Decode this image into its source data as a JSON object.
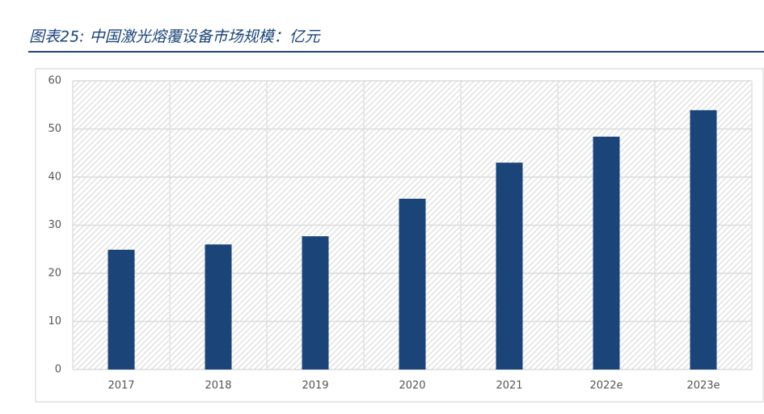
{
  "chart_data": {
    "type": "bar",
    "title": "图表25: 中国激光熔覆设备市场规模：亿元",
    "categories": [
      "2017",
      "2018",
      "2019",
      "2020",
      "2021",
      "2022e",
      "2023e"
    ],
    "values": [
      24.9,
      26.0,
      27.7,
      35.5,
      43.0,
      48.4,
      53.9
    ],
    "color": "#1b4479",
    "ylim": [
      0,
      60
    ],
    "yticks": [
      0,
      10,
      20,
      30,
      40,
      50,
      60
    ],
    "grid": true
  }
}
